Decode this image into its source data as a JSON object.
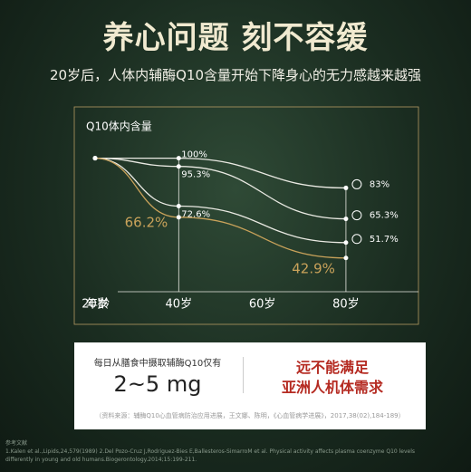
{
  "title": "养心问题 刻不容缓",
  "subtitle": "20岁后，人体内辅酶Q10含量开始下降身心的无力感越来越强",
  "chart_data": {
    "type": "line",
    "ylabel": "Q10体内含量",
    "xlabel": "年龄",
    "x": [
      20,
      40,
      80
    ],
    "xlim": [
      20,
      85
    ],
    "xticks": [
      {
        "value": 20,
        "label": "20岁"
      },
      {
        "value": 40,
        "label": "40岁"
      },
      {
        "value": 60,
        "label": "60岁"
      },
      {
        "value": 80,
        "label": "80岁"
      }
    ],
    "ylim": [
      35,
      105
    ],
    "series": [
      {
        "color": "#e9e9e2",
        "values": [
          100,
          100,
          83
        ],
        "value_labels": [
          null,
          "100%",
          "83%"
        ]
      },
      {
        "color": "#e9e9e2",
        "values": [
          100,
          95.3,
          65.3
        ],
        "value_labels": [
          null,
          "95.3%",
          "65.3%"
        ]
      },
      {
        "color": "#e9e9e2",
        "values": [
          100,
          72.6,
          51.7
        ],
        "value_labels": [
          null,
          "72.6%",
          "51.7%"
        ]
      },
      {
        "color": "#c9a25a",
        "values": [
          100,
          66.2,
          42.9
        ],
        "value_labels": [
          null,
          "66.2%",
          "42.9%"
        ]
      }
    ]
  },
  "panel": {
    "intake_label": "每日从膳食中摄取辅酶Q10仅有",
    "intake_amount": "2~5 mg",
    "verdict_1": "远不能满足",
    "verdict_2": "亚洲人机体需求",
    "source": "（资料来源：辅酶Q10心血管病防治应用进展，王文娜、陈明，《心血管病学进展》，2017,38(02),184-189）"
  },
  "references": {
    "heading": "参考文献",
    "items": [
      "1.Kalen et al.,Lipids,24,579(1989)    2.Del Pozo-Cruz J,Rodriguez-Bies E,Ballesteros-SimarroM et al. Physical activity affects plasma coenzyme Q10 levels",
      "differently in young and old humans.Biogerontology.2014;15:199-211."
    ]
  }
}
